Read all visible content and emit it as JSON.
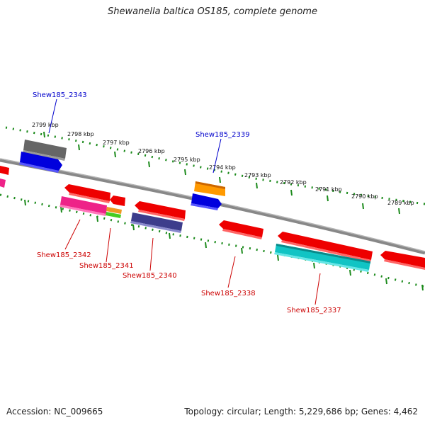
{
  "header": {
    "title": "Shewanella baltica OS185, complete genome"
  },
  "footer": {
    "accession": "Accession: NC_009665",
    "info": "Topology: circular; Length: 5,229,686 bp; Genes: 4,462"
  },
  "colors": {
    "backbone": "#7f7f7f",
    "scale_dots": "#1b8a1b",
    "label_forward": "#0000cc",
    "label_reverse": "#cc0000"
  },
  "scale": {
    "labels": [
      "2799 kbp",
      "2798 kbp",
      "2797 kbp",
      "2796 kbp",
      "2795 kbp",
      "2794 kbp",
      "2793 kbp",
      "2792 kbp",
      "2791 kbp",
      "2790 kbp",
      "2789 kbp"
    ]
  },
  "genes": [
    {
      "label": "Shew185_2343",
      "strand": "forward",
      "color": "#0000dd"
    },
    {
      "label": "Shew185_2339",
      "strand": "forward",
      "color": "#0000dd"
    },
    {
      "label": "Shew185_2342",
      "strand": "reverse",
      "color": "#ee2288"
    },
    {
      "label": "Shew185_2341",
      "strand": "reverse",
      "color": "#ee9922"
    },
    {
      "label": "Shew185_2340",
      "strand": "reverse",
      "color": "#3d3d8c"
    },
    {
      "label": "Shew185_2338",
      "strand": "reverse",
      "color": "#ee0000"
    },
    {
      "label": "Shew185_2337",
      "strand": "reverse",
      "color": "#11c4c4"
    }
  ],
  "feature_colors": {
    "gray": "#666666",
    "orange": "#ff9900",
    "red": "#ee0000",
    "green": "#44cc22",
    "magenta": "#ee2288"
  }
}
